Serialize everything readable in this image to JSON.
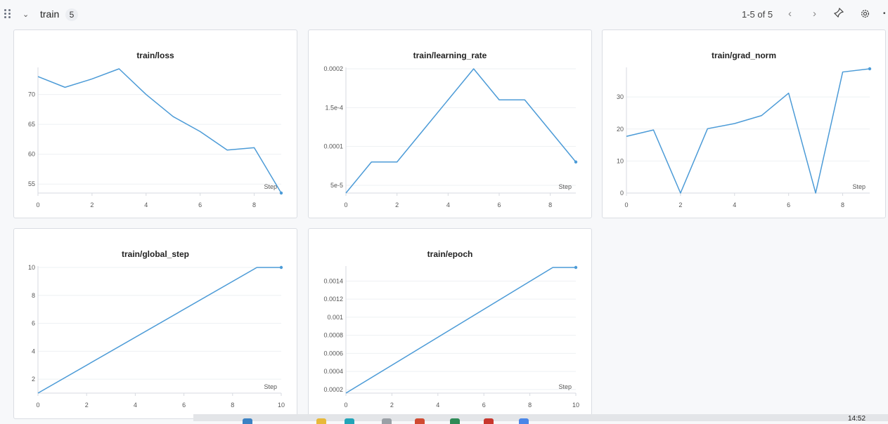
{
  "section": {
    "title": "train",
    "count": "5",
    "pager": "1-5 of 5"
  },
  "icons": [
    "drag-handle-icon",
    "chevron-down-icon",
    "chevron-left-icon",
    "chevron-right-icon",
    "pin-icon",
    "gear-icon",
    "more-icon"
  ],
  "accent_color": "#4c9bd7",
  "chart_data": [
    {
      "type": "line",
      "title": "train/loss",
      "xlabel": "Step",
      "x": [
        0,
        1,
        2,
        3,
        4,
        5,
        6,
        7,
        8,
        9
      ],
      "y": [
        73,
        71.2,
        72.6,
        74.3,
        70,
        66.3,
        63.8,
        60.7,
        61.1,
        53.5
      ],
      "xlim": [
        0,
        9
      ],
      "ylim": [
        53.5,
        74.3
      ],
      "xticks": [
        0,
        2,
        4,
        6,
        8
      ],
      "xtick_labels": [
        "0",
        "2",
        "4",
        "6",
        "8"
      ],
      "yticks": [
        55,
        60,
        65,
        70
      ],
      "ytick_labels": [
        "55",
        "60",
        "65",
        "70"
      ],
      "grid": true
    },
    {
      "type": "line",
      "title": "train/learning_rate",
      "xlabel": "Step",
      "x": [
        0,
        1,
        2,
        3,
        4,
        5,
        6,
        7,
        8,
        9
      ],
      "y": [
        4e-05,
        8e-05,
        8e-05,
        0.00012,
        0.00016,
        0.0002,
        0.00016,
        0.00016,
        0.00012,
        8e-05
      ],
      "xlim": [
        0,
        9
      ],
      "ylim": [
        4e-05,
        0.0002
      ],
      "xticks": [
        0,
        2,
        4,
        6,
        8
      ],
      "xtick_labels": [
        "0",
        "2",
        "4",
        "6",
        "8"
      ],
      "yticks": [
        5e-05,
        0.0001,
        0.00015,
        0.0002
      ],
      "ytick_labels": [
        "5e-5",
        "0.0001",
        "1.5e-4",
        "0.0002"
      ],
      "grid": true
    },
    {
      "type": "line",
      "title": "train/grad_norm",
      "xlabel": "Step",
      "x": [
        0,
        1,
        2,
        3,
        4,
        5,
        6,
        7,
        8,
        9
      ],
      "y": [
        17.7,
        19.7,
        0,
        20.1,
        21.7,
        24.2,
        31.2,
        0,
        37.8,
        38.8
      ],
      "xlim": [
        0,
        9
      ],
      "ylim": [
        0,
        38.8
      ],
      "xticks": [
        0,
        2,
        4,
        6,
        8
      ],
      "xtick_labels": [
        "0",
        "2",
        "4",
        "6",
        "8"
      ],
      "yticks": [
        0,
        10,
        20,
        30
      ],
      "ytick_labels": [
        "0",
        "10",
        "20",
        "30"
      ],
      "grid": true
    },
    {
      "type": "line",
      "title": "train/global_step",
      "xlabel": "Step",
      "x": [
        0,
        9,
        10
      ],
      "y": [
        1,
        10,
        10
      ],
      "xlim": [
        0,
        10
      ],
      "ylim": [
        1,
        10
      ],
      "xticks": [
        0,
        2,
        4,
        6,
        8,
        10
      ],
      "xtick_labels": [
        "0",
        "2",
        "4",
        "6",
        "8",
        "10"
      ],
      "yticks": [
        2,
        4,
        6,
        8,
        10
      ],
      "ytick_labels": [
        "2",
        "4",
        "6",
        "8",
        "10"
      ],
      "grid": true
    },
    {
      "type": "line",
      "title": "train/epoch",
      "xlabel": "Step",
      "x": [
        0,
        9,
        10
      ],
      "y": [
        0.00016,
        0.00155,
        0.00155
      ],
      "xlim": [
        0,
        10
      ],
      "ylim": [
        0.00016,
        0.00155
      ],
      "xticks": [
        0,
        2,
        4,
        6,
        8,
        10
      ],
      "xtick_labels": [
        "0",
        "2",
        "4",
        "6",
        "8",
        "10"
      ],
      "yticks": [
        0.0002,
        0.0004,
        0.0006,
        0.0008,
        0.001,
        0.0012,
        0.0014
      ],
      "ytick_labels": [
        "0.0002",
        "0.0004",
        "0.0006",
        "0.0008",
        "0.001",
        "0.0012",
        "0.0014"
      ],
      "grid": true
    }
  ],
  "taskbar": {
    "clock": "14:52"
  }
}
